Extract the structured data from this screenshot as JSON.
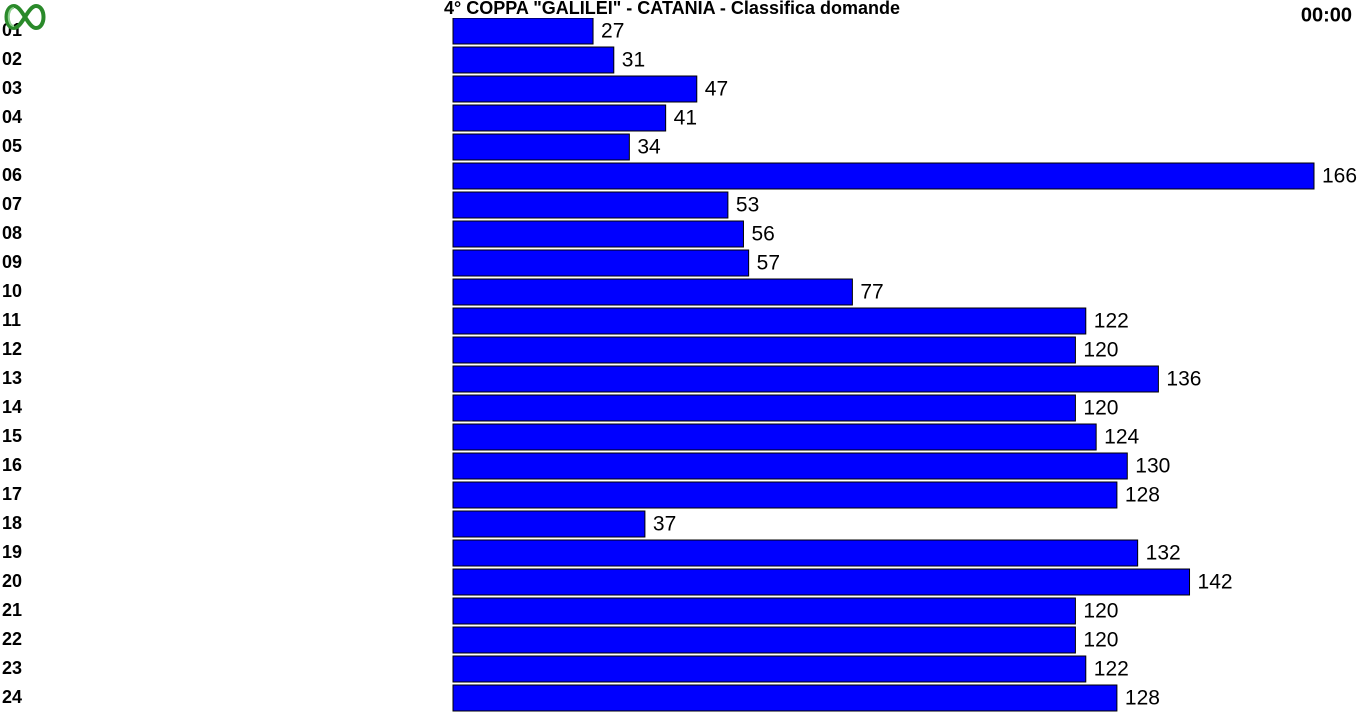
{
  "header": {
    "clock": "00:00"
  },
  "chart_data": {
    "type": "hbar",
    "title": "4° COPPA \"GALILEI\" - CATANIA - Classifica domande",
    "categories": [
      "01",
      "02",
      "03",
      "04",
      "05",
      "06",
      "07",
      "08",
      "09",
      "10",
      "11",
      "12",
      "13",
      "14",
      "15",
      "16",
      "17",
      "18",
      "19",
      "20",
      "21",
      "22",
      "23",
      "24"
    ],
    "values": [
      27,
      31,
      47,
      41,
      34,
      166,
      53,
      56,
      57,
      77,
      122,
      120,
      136,
      120,
      124,
      130,
      128,
      37,
      132,
      142,
      120,
      120,
      122,
      128
    ],
    "color": "#0000ff",
    "xlim": [
      0,
      166
    ]
  }
}
